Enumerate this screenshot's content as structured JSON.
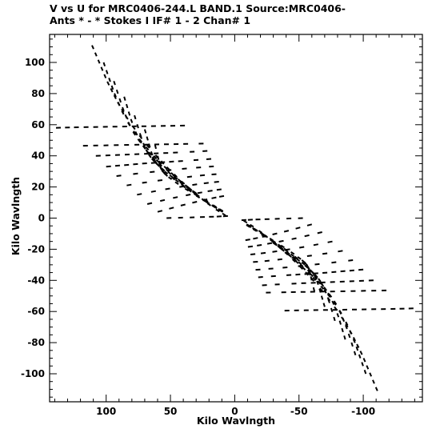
{
  "header": {
    "title_line1": "V vs U for MRC0406-244.L BAND.1   Source:MRC0406-",
    "title_line2": "Ants * - *     Stokes I   IF# 1 - 2   Chan# 1"
  },
  "chart_data": {
    "type": "scatter",
    "xlabel": "Kilo Wavlngth",
    "ylabel": "Kilo Wavlngth",
    "xlim": [
      144,
      -146
    ],
    "ylim": [
      -118,
      118
    ],
    "x_inverted": true,
    "x_ticks": [
      100,
      50,
      0,
      -50,
      -100
    ],
    "y_ticks": [
      100,
      80,
      60,
      40,
      20,
      0,
      -20,
      -40,
      -60,
      -80,
      -100
    ],
    "x_tick_labels": [
      "100",
      "50",
      "0",
      "-50",
      "-100"
    ],
    "y_tick_labels": [
      "100",
      "80",
      "60",
      "40",
      "20",
      "0",
      "-20",
      "-40",
      "-60",
      "-80",
      "-100"
    ],
    "grid": false,
    "marker_color": "#000000",
    "tracks": [
      {
        "u": [
          111.0,
          99.1,
          91.1,
          84.8,
          79.4,
          74.1,
          68.3,
          61.6,
          52.9,
          41.4,
          30.0,
          21.2,
          14.6,
          9.6,
          6.0
        ],
        "v": [
          111.0,
          87.7,
          74.5,
          65.7,
          59.1,
          53.1,
          47.0,
          40.5,
          32.8,
          23.6,
          15.4,
          9.5,
          5.6,
          3.0,
          1.2
        ]
      },
      {
        "u": [
          102.0,
          93.6,
          87.8,
          83.1,
          78.7,
          74.3,
          69.1,
          63.0,
          54.9,
          44.1,
          33.0,
          24.0,
          17.2,
          11.9,
          7.8
        ],
        "v": [
          100.0,
          80.1,
          68.9,
          61.4,
          55.9,
          50.8,
          45.7,
          40.0,
          33.2,
          25.0,
          17.6,
          12.1,
          8.3,
          5.6,
          3.6
        ]
      },
      {
        "u": [
          94.0,
          87.4,
          82.8,
          79.0,
          75.3,
          71.4,
          66.8,
          61.0,
          53.3,
          42.9,
          32.1,
          23.5,
          16.8,
          11.8,
          7.8
        ],
        "v": [
          88.0,
          71.2,
          61.7,
          55.4,
          50.8,
          46.6,
          42.3,
          37.5,
          31.5,
          24.0,
          17.2,
          12.0,
          8.3,
          5.7,
          3.7
        ]
      },
      {
        "u": [
          86.0,
          80.8,
          77.2,
          74.2,
          71.3,
          68.1,
          64.1,
          59.0,
          52.1,
          42.7,
          32.7,
          24.4,
          17.9,
          12.9,
          8.9
        ],
        "v": [
          78.0,
          63.6,
          55.6,
          50.3,
          46.4,
          42.8,
          39.2,
          35.1,
          29.9,
          23.2,
          16.9,
          12.0,
          8.4,
          5.9,
          3.9
        ]
      },
      {
        "u": [
          78.0,
          73.8,
          71.1,
          69.0,
          66.9,
          64.5,
          61.3,
          56.9,
          50.5,
          41.6,
          31.8,
          23.5,
          17.0,
          11.9,
          7.8
        ],
        "v": [
          66.0,
          54.5,
          48.2,
          44.0,
          40.9,
          38.2,
          35.3,
          32.0,
          27.6,
          21.8,
          16.1,
          11.6,
          8.2,
          5.8,
          3.8
        ]
      },
      {
        "u": [
          70.0,
          66.8,
          65.0,
          63.6,
          62.3,
          60.6,
          58.2,
          54.6,
          49.0,
          40.8,
          31.6,
          23.8,
          17.5,
          12.5,
          8.5
        ],
        "v": [
          57.0,
          47.8,
          42.8,
          39.5,
          37.1,
          35.0,
          32.8,
          30.0,
          26.2,
          21.0,
          15.7,
          11.3,
          8.0,
          5.5,
          3.6
        ]
      },
      {
        "u": [
          62.0,
          59.9,
          58.8,
          58.1,
          57.4,
          56.3,
          54.6,
          51.5,
          46.3,
          38.6,
          29.9,
          22.4,
          16.5,
          11.9,
          8.2
        ],
        "v": [
          47.0,
          40.0,
          36.2,
          33.8,
          32.0,
          30.4,
          28.6,
          26.4,
          23.2,
          18.9,
          14.4,
          10.6,
          7.6,
          5.3,
          3.5
        ]
      }
    ],
    "horizontal_tracks": [
      {
        "u": [
          139.0,
          125.0,
          110.0,
          95.0,
          80.0,
          65.0,
          50.0,
          35.0
        ],
        "v": [
          58.0,
          58.3,
          58.5,
          58.7,
          58.9,
          59.1,
          59.3,
          59.5
        ]
      },
      {
        "u": [
          118.0,
          102.0,
          86.0,
          70.0,
          55.0,
          40.0,
          28.0,
          20.0
        ],
        "v": [
          46.5,
          46.7,
          47.0,
          47.2,
          47.4,
          47.6,
          47.8,
          48.0
        ]
      },
      {
        "u": [
          108.0,
          93.0,
          78.0,
          63.0,
          48.0,
          35.0,
          25.0,
          16.0
        ],
        "v": [
          40.0,
          40.5,
          41.0,
          41.5,
          42.0,
          42.5,
          43.0,
          43.5
        ]
      },
      {
        "u": [
          100.0,
          86.0,
          72.0,
          58.0,
          44.0,
          32.0,
          22.0,
          14.0
        ],
        "v": [
          33.0,
          34.0,
          35.0,
          35.8,
          36.5,
          37.2,
          37.8,
          38.3
        ]
      },
      {
        "u": [
          92.0,
          79.0,
          66.0,
          53.0,
          41.0,
          30.0,
          20.0,
          12.0
        ],
        "v": [
          27.0,
          28.3,
          29.5,
          30.6,
          31.6,
          32.4,
          33.0,
          33.5
        ]
      },
      {
        "u": [
          84.0,
          72.0,
          60.0,
          48.0,
          37.0,
          27.0,
          18.0,
          10.0
        ],
        "v": [
          21.0,
          22.6,
          24.0,
          25.3,
          26.4,
          27.3,
          28.0,
          28.5
        ]
      },
      {
        "u": [
          76.0,
          65.0,
          54.0,
          43.0,
          33.0,
          24.0,
          16.0,
          9.0
        ],
        "v": [
          15.0,
          16.8,
          18.5,
          20.0,
          21.3,
          22.3,
          23.1,
          23.7
        ]
      },
      {
        "u": [
          68.0,
          58.0,
          48.0,
          38.0,
          29.0,
          21.0,
          14.0,
          8.0
        ],
        "v": [
          9.0,
          11.0,
          12.9,
          14.6,
          16.0,
          17.2,
          18.1,
          18.8
        ]
      },
      {
        "u": [
          60.0,
          51.0,
          42.0,
          33.0,
          25.0,
          18.0,
          12.0,
          6.0
        ],
        "v": [
          4.0,
          6.0,
          8.0,
          9.8,
          11.4,
          12.7,
          13.7,
          14.5
        ]
      },
      {
        "u": [
          53.0,
          44.0,
          35.0,
          27.0,
          20.0,
          14.0,
          9.0,
          4.0
        ],
        "v": [
          0.0,
          0.2,
          0.4,
          0.6,
          0.8,
          1.0,
          1.2,
          1.4
        ]
      }
    ]
  }
}
